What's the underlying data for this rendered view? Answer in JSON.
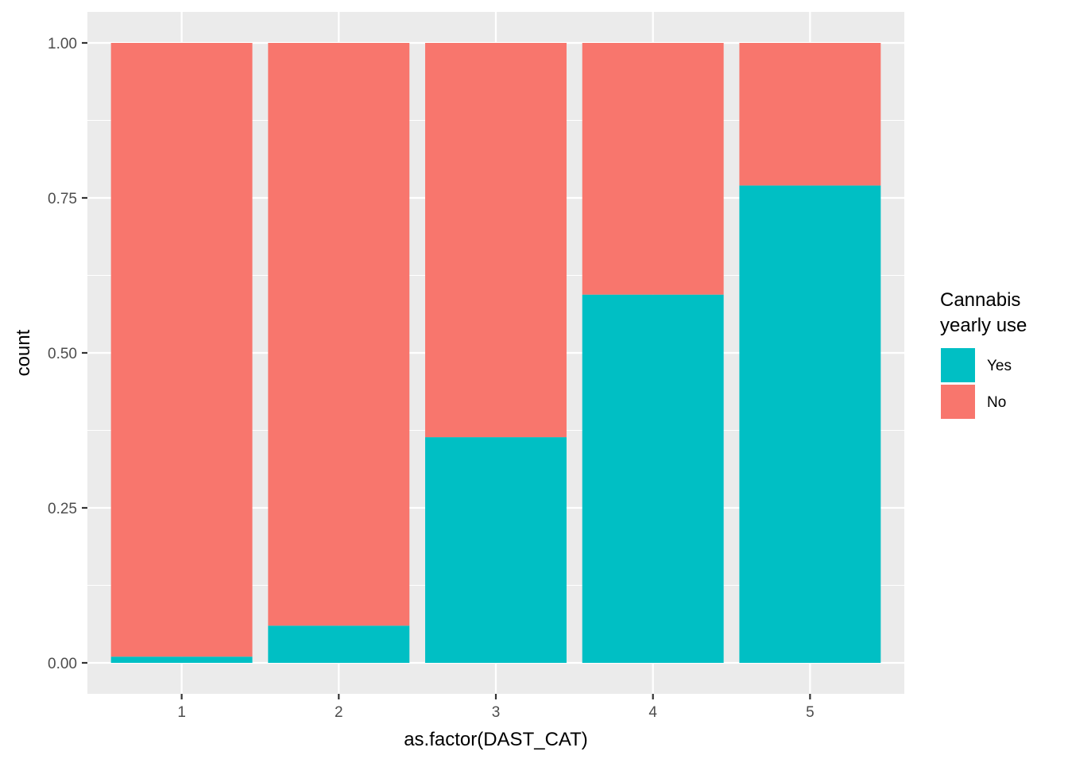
{
  "chart_data": {
    "type": "bar",
    "stacked": true,
    "categories": [
      "1",
      "2",
      "3",
      "4",
      "5"
    ],
    "series": [
      {
        "name": "Yes",
        "values": [
          0.01,
          0.06,
          0.364,
          0.594,
          0.77
        ]
      },
      {
        "name": "No",
        "values": [
          0.99,
          0.94,
          0.636,
          0.406,
          0.23
        ]
      }
    ],
    "xlabel": "as.factor(DAST_CAT)",
    "ylabel": "count",
    "ylim": [
      -0.05,
      1.05
    ],
    "yticks": [
      0,
      0.25,
      0.5,
      0.75,
      1
    ],
    "ytick_labels": [
      "0.00",
      "0.25",
      "0.50",
      "0.75",
      "1.00"
    ],
    "xtick_labels": [
      "1",
      "2",
      "3",
      "4",
      "5"
    ],
    "grid": true,
    "legend": {
      "title_lines": [
        "Cannabis",
        "yearly use"
      ],
      "placement": "right",
      "entries": [
        "Yes",
        "No"
      ]
    },
    "colors": {
      "Yes": "#00BFC4",
      "No": "#F8766D",
      "panel": "#EBEBEB",
      "grid": "#FFFFFF"
    }
  }
}
